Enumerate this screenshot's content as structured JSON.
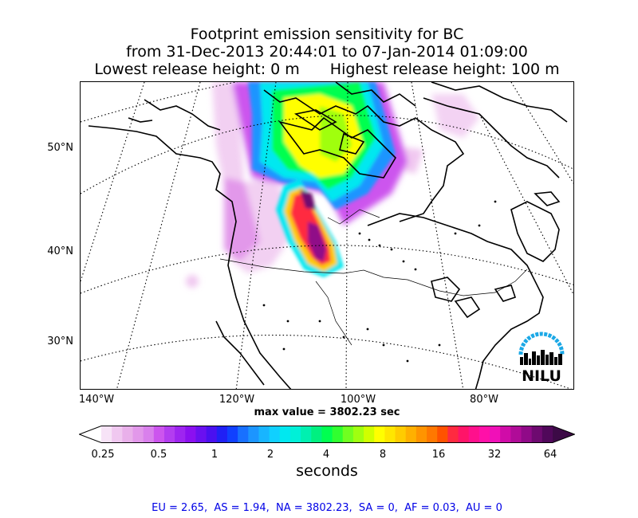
{
  "title": {
    "line1": "Footprint emission sensitivity for BC",
    "line2": "from 31-Dec-2013 20:44:01 to 07-Jan-2014 01:09:00",
    "lowest_release": "Lowest release height: 0 m",
    "highest_release": "Highest release height: 100 m"
  },
  "map": {
    "lat_labels": [
      "50°N",
      "40°N",
      "30°N"
    ],
    "lon_labels": [
      "140°W",
      "120°W",
      "100°W",
      "80°W"
    ],
    "logo_text": "NILU"
  },
  "max_value": "max value = 3802.23 sec",
  "colorbar": {
    "ticks": [
      "0.25",
      "0.5",
      "1",
      "2",
      "4",
      "8",
      "16",
      "32",
      "64"
    ],
    "units": "seconds",
    "colors": [
      "#f7e3f7",
      "#f0c8f0",
      "#e9b0ea",
      "#e298ea",
      "#d980ec",
      "#cc55ee",
      "#b33df0",
      "#9e25f0",
      "#8b10f0",
      "#6a10f0",
      "#4a10f0",
      "#2020f5",
      "#1040ff",
      "#1870ff",
      "#1c95ff",
      "#18b5ff",
      "#10d0ff",
      "#00e8f0",
      "#00f0d8",
      "#00f0b0",
      "#00f080",
      "#00ff50",
      "#30ff30",
      "#70ff20",
      "#a0ff10",
      "#d0ff00",
      "#ffff00",
      "#ffe600",
      "#ffcc00",
      "#ffb000",
      "#ff9400",
      "#ff7800",
      "#ff5200",
      "#ff2a40",
      "#ff1468",
      "#ff108c",
      "#ff10a8",
      "#f010b8",
      "#d00ca8",
      "#b00c98",
      "#900a88",
      "#6e0a70",
      "#50085a"
    ]
  },
  "footer": "EU = 2.65,  AS = 1.94,  NA = 3802.23,  SA = 0,  AF = 0.03,  AU = 0"
}
